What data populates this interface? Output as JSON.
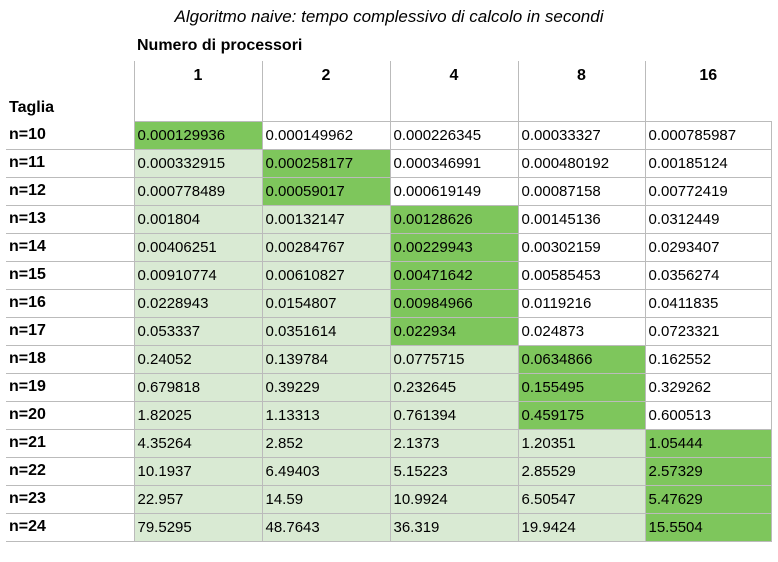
{
  "title": "Algoritmo naive: tempo complessivo di calcolo in secondi",
  "subtitle": "Numero di processori",
  "row_header": "Taglia",
  "columns": [
    "1",
    "2",
    "4",
    "8",
    "16"
  ],
  "rows": [
    {
      "label": "n=10",
      "values": [
        "0.000129936",
        "0.000149962",
        "0.000226345",
        "0.00033327",
        "0.000785987"
      ],
      "best": 0
    },
    {
      "label": "n=11",
      "values": [
        "0.000332915",
        "0.000258177",
        "0.000346991",
        "0.000480192",
        "0.00185124"
      ],
      "best": 1
    },
    {
      "label": "n=12",
      "values": [
        "0.000778489",
        "0.00059017",
        "0.000619149",
        "0.00087158",
        "0.00772419"
      ],
      "best": 1
    },
    {
      "label": "n=13",
      "values": [
        "0.001804",
        "0.00132147",
        "0.00128626",
        "0.00145136",
        "0.0312449"
      ],
      "best": 2
    },
    {
      "label": "n=14",
      "values": [
        "0.00406251",
        "0.00284767",
        "0.00229943",
        "0.00302159",
        "0.0293407"
      ],
      "best": 2
    },
    {
      "label": "n=15",
      "values": [
        "0.00910774",
        "0.00610827",
        "0.00471642",
        "0.00585453",
        "0.0356274"
      ],
      "best": 2
    },
    {
      "label": "n=16",
      "values": [
        "0.0228943",
        "0.0154807",
        "0.00984966",
        "0.0119216",
        "0.0411835"
      ],
      "best": 2
    },
    {
      "label": "n=17",
      "values": [
        "0.053337",
        "0.0351614",
        "0.022934",
        "0.024873",
        "0.0723321"
      ],
      "best": 2
    },
    {
      "label": "n=18",
      "values": [
        "0.24052",
        "0.139784",
        "0.0775715",
        "0.0634866",
        "0.162552"
      ],
      "best": 3
    },
    {
      "label": "n=19",
      "values": [
        "0.679818",
        "0.39229",
        "0.232645",
        "0.155495",
        "0.329262"
      ],
      "best": 3
    },
    {
      "label": "n=20",
      "values": [
        "1.82025",
        "1.13313",
        "0.761394",
        "0.459175",
        "0.600513"
      ],
      "best": 3
    },
    {
      "label": "n=21",
      "values": [
        "4.35264",
        "2.852",
        "2.1373",
        "1.20351",
        "1.05444"
      ],
      "best": 4
    },
    {
      "label": "n=22",
      "values": [
        "10.1937",
        "6.49403",
        "5.15223",
        "2.85529",
        "2.57329"
      ],
      "best": 4
    },
    {
      "label": "n=23",
      "values": [
        "22.957",
        "14.59",
        "10.9924",
        "6.50547",
        "5.47629"
      ],
      "best": 4
    },
    {
      "label": "n=24",
      "values": [
        "79.5295",
        "48.7643",
        "36.319",
        "19.9424",
        "15.5504"
      ],
      "best": 4
    }
  ],
  "colors": {
    "best_cell": "#7ec65c",
    "slower_cell": "#d9ead3"
  }
}
